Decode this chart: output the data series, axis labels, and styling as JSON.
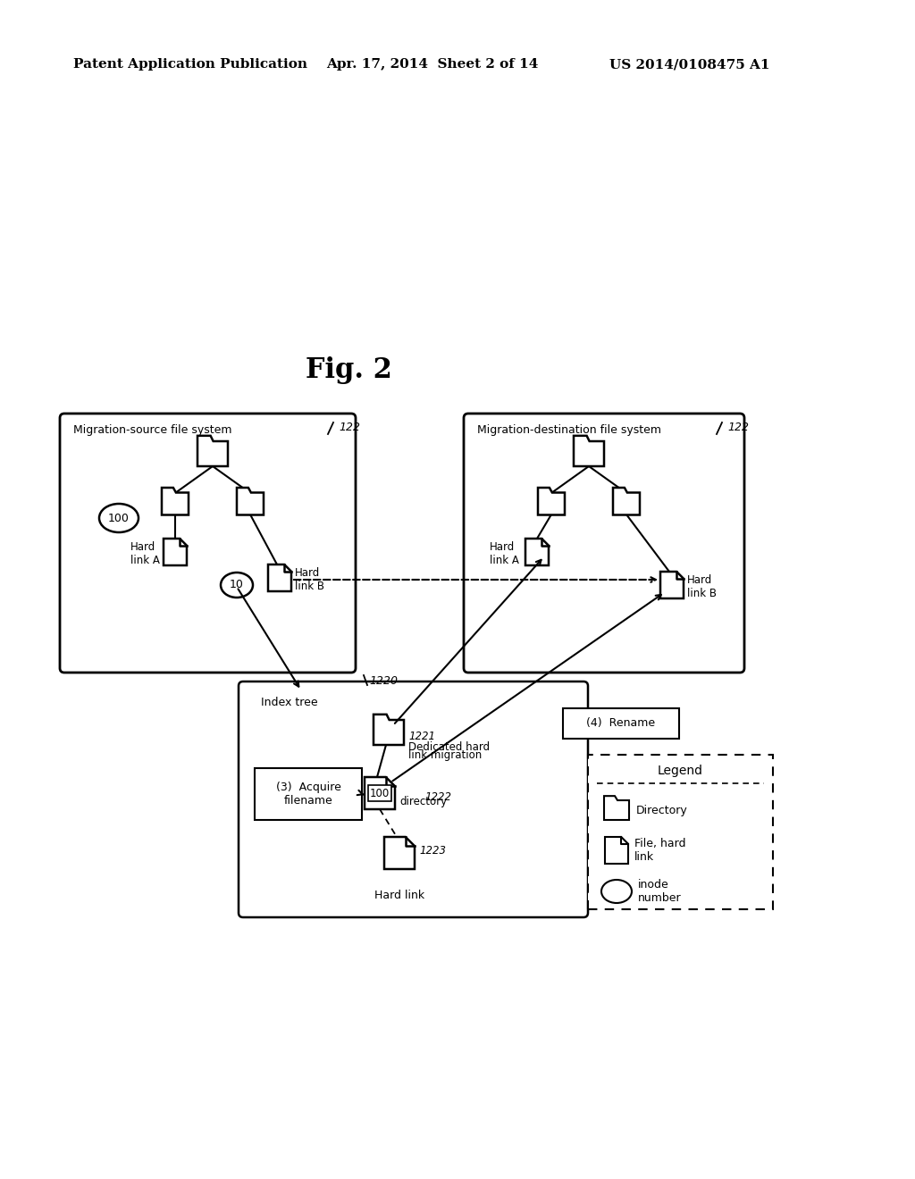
{
  "bg_color": "#ffffff",
  "fig_title": "Fig. 2",
  "header_left": "Patent Application Publication",
  "header_center": "Apr. 17, 2014  Sheet 2 of 14",
  "header_right": "US 2014/0108475 A1",
  "src_label": "Migration-source file system",
  "src_ref": "122",
  "dst_label": "Migration-destination file system",
  "dst_ref": "122",
  "index_label": "1220",
  "index_tree_label": "Index tree",
  "ref_1221": "1221",
  "ref_1222": "1222",
  "ref_1223": "1223",
  "dedicated_line1": "Dedicated hard",
  "dedicated_line2": "link migration",
  "dedicated_line3": "directory",
  "hard_link_label": "Hard link",
  "acquire_label": "(3)  Acquire\nfilename",
  "rename_label": "(4)  Rename",
  "legend_title": "Legend",
  "legend_dir": "Directory",
  "legend_file": "File, hard\nlink",
  "legend_inode": "inode\nnumber",
  "inode_100_src": "100",
  "inode_10": "10",
  "inode_100_idx": "100",
  "hard_link_a_src": "Hard\nlink A",
  "hard_link_b_src": "Hard\nlink B",
  "hard_link_a_dst": "Hard\nlink A",
  "hard_link_b_dst": "Hard\nlink B"
}
